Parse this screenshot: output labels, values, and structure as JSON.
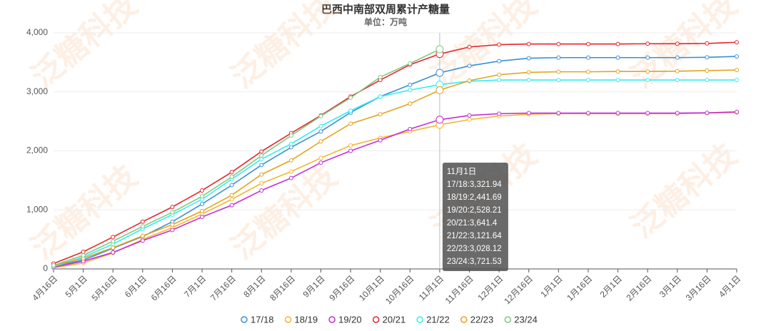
{
  "chart_data": {
    "type": "line",
    "title": "巴西中南部双周累计产糖量",
    "subtitle": "单位：万吨",
    "watermark": "泛糖科技",
    "categories": [
      "4月16日",
      "5月1日",
      "5月16日",
      "6月1日",
      "6月16日",
      "7月1日",
      "7月16日",
      "8月1日",
      "8月16日",
      "9月1日",
      "9月16日",
      "10月1日",
      "10月16日",
      "11月1日",
      "11月16日",
      "12月1日",
      "12月16日",
      "1月1日",
      "1月16日",
      "2月1日",
      "2月16日",
      "3月1日",
      "3月16日",
      "4月1日"
    ],
    "ylim": [
      0,
      4000
    ],
    "yticks": [
      0,
      {
        "value": 1000,
        "label": "1,000"
      },
      {
        "value": 2000,
        "label": "2,000"
      },
      {
        "value": 3000,
        "label": "3,000"
      },
      {
        "value": 4000,
        "label": "4,000"
      }
    ],
    "grid": true,
    "legend": "bottom",
    "series": [
      {
        "name": "17/18",
        "color": "#3b8fd6",
        "values": [
          50,
          150,
          350,
          550,
          800,
          1100,
          1420,
          1760,
          2060,
          2330,
          2650,
          2920,
          3120,
          3321.94,
          3440,
          3520,
          3570,
          3580,
          3580,
          3580,
          3580,
          3580,
          3585,
          3600
        ]
      },
      {
        "name": "18/19",
        "color": "#f2b632",
        "values": [
          20,
          100,
          270,
          500,
          700,
          930,
          1180,
          1450,
          1650,
          1880,
          2090,
          2220,
          2330,
          2441.69,
          2530,
          2590,
          2620,
          2630,
          2630,
          2630,
          2630,
          2630,
          2640,
          2650
        ]
      },
      {
        "name": "19/20",
        "color": "#c42bd8",
        "values": [
          30,
          130,
          280,
          480,
          660,
          880,
          1080,
          1330,
          1540,
          1800,
          2000,
          2180,
          2370,
          2528.21,
          2600,
          2630,
          2640,
          2640,
          2640,
          2640,
          2640,
          2640,
          2645,
          2660
        ]
      },
      {
        "name": "20/21",
        "color": "#e5262b",
        "values": [
          90,
          290,
          540,
          800,
          1050,
          1330,
          1640,
          1990,
          2300,
          2600,
          2920,
          3200,
          3460,
          3641.4,
          3760,
          3800,
          3810,
          3810,
          3810,
          3810,
          3815,
          3815,
          3820,
          3840
        ]
      },
      {
        "name": "21/22",
        "color": "#33eef0",
        "values": [
          40,
          200,
          420,
          680,
          920,
          1180,
          1520,
          1860,
          2120,
          2420,
          2680,
          2920,
          3030,
          3121.64,
          3180,
          3200,
          3200,
          3200,
          3200,
          3200,
          3200,
          3200,
          3200,
          3200
        ]
      },
      {
        "name": "22/23",
        "color": "#e2a41e",
        "values": [
          60,
          180,
          360,
          560,
          750,
          980,
          1250,
          1600,
          1840,
          2160,
          2460,
          2620,
          2800,
          3028.12,
          3190,
          3290,
          3330,
          3340,
          3340,
          3345,
          3345,
          3350,
          3360,
          3370
        ]
      },
      {
        "name": "23/24",
        "color": "#80c882",
        "values": [
          60,
          230,
          470,
          720,
          960,
          1230,
          1560,
          1920,
          2260,
          2590,
          2900,
          3250,
          3480,
          3721.53,
          null,
          null,
          null,
          null,
          null,
          null,
          null,
          null,
          null,
          null
        ]
      }
    ],
    "tooltip": {
      "category": "11月1日",
      "index": 13,
      "labels": [
        "17/18:3,321.94",
        "18/19:2,441.69",
        "19/20:2,528.21",
        "20/21:3,641.4",
        "21/22:3,121.64",
        "22/23:3,028.12",
        "23/24:3,721.53"
      ]
    }
  }
}
